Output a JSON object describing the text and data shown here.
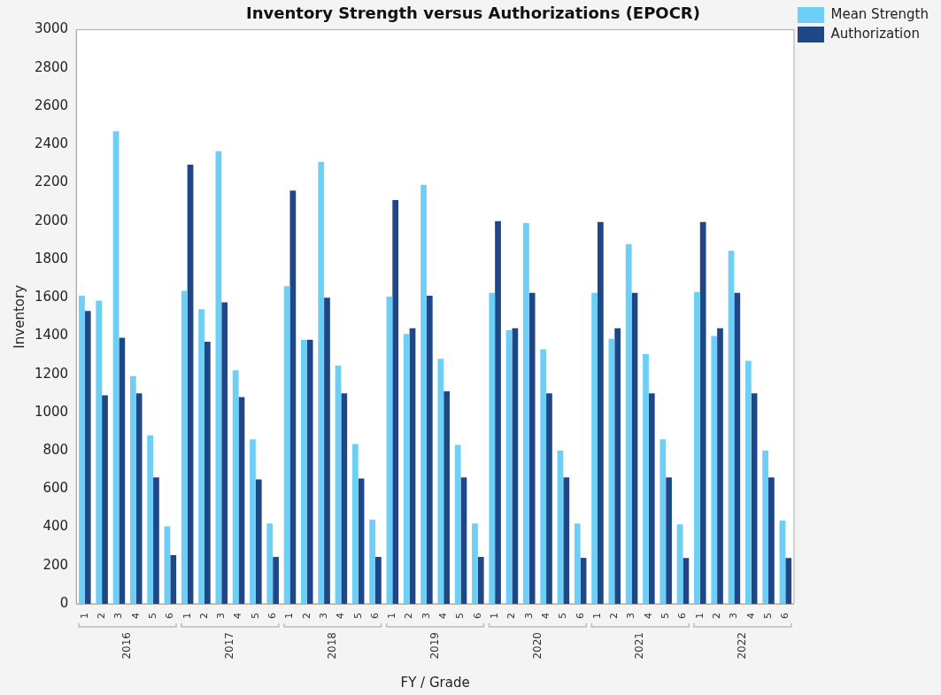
{
  "chart_data": {
    "type": "bar",
    "title": "Inventory Strength versus Authorizations (EPOCR)",
    "xlabel": "FY / Grade",
    "ylabel": "Inventory",
    "categories": [
      "1",
      "2",
      "3",
      "4",
      "5",
      "6",
      "1",
      "2",
      "3",
      "4",
      "5",
      "6",
      "1",
      "2",
      "3",
      "4",
      "5",
      "6",
      "1",
      "2",
      "3",
      "4",
      "5",
      "6",
      "1",
      "2",
      "3",
      "4",
      "5",
      "6",
      "1",
      "2",
      "3",
      "4",
      "5",
      "6",
      "1",
      "2",
      "3",
      "4",
      "5",
      "6"
    ],
    "series": [
      {
        "name": "Mean Strength",
        "color": "#6dcff6",
        "values": [
          1610,
          1585,
          2470,
          1190,
          880,
          405,
          1635,
          1540,
          2365,
          1220,
          860,
          420,
          1660,
          1380,
          2310,
          1245,
          835,
          440,
          1605,
          1410,
          2190,
          1280,
          830,
          420,
          1625,
          1430,
          1990,
          1330,
          800,
          420,
          1625,
          1385,
          1880,
          1305,
          860,
          415,
          1630,
          1400,
          1845,
          1270,
          800,
          435
        ]
      },
      {
        "name": "Authorization",
        "color": "#1f4788",
        "values": [
          1530,
          1090,
          1390,
          1100,
          660,
          255,
          2295,
          1370,
          1575,
          1080,
          650,
          245,
          2160,
          1380,
          1600,
          1100,
          655,
          245,
          2110,
          1440,
          1610,
          1110,
          660,
          245,
          2000,
          1440,
          1625,
          1100,
          660,
          240,
          1995,
          1440,
          1625,
          1100,
          660,
          240,
          1995,
          1440,
          1625,
          1100,
          660,
          240
        ]
      }
    ],
    "annotations": [
      "2016",
      "2017",
      "2018",
      "2019",
      "2020",
      "2021",
      "2022"
    ],
    "ylim": [
      0,
      3000
    ],
    "yticks": [
      0,
      200,
      400,
      600,
      800,
      1000,
      1200,
      1400,
      1600,
      1800,
      2000,
      2200,
      2400,
      2600,
      2800,
      3000
    ],
    "grid": false,
    "legend": "top right"
  }
}
